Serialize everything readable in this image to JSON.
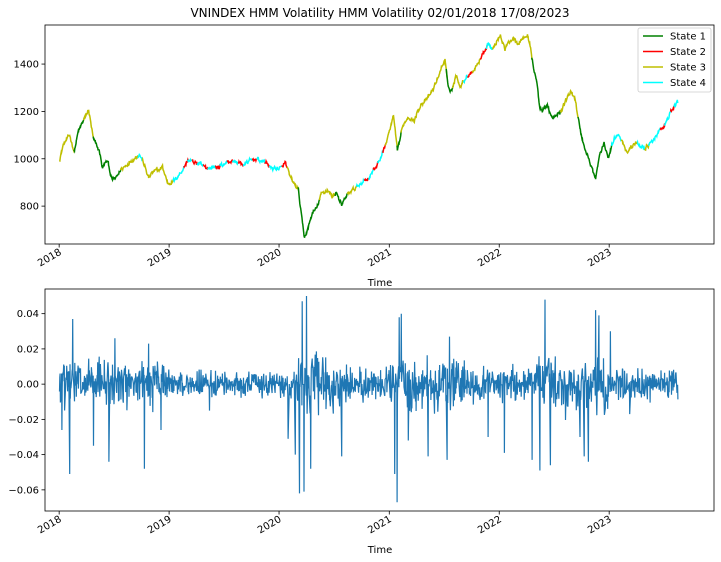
{
  "chart_data": [
    {
      "type": "line",
      "title": "VNINDEX HMM Volatility HMM Volatility 02/01/2018 17/08/2023",
      "xlabel": "Time",
      "ylabel": "",
      "x_ticks": [
        "2018",
        "2019",
        "2020",
        "2021",
        "2022",
        "2023"
      ],
      "y_ticks": [
        "800",
        "1000",
        "1200",
        "1400"
      ],
      "xlim": [
        "2017-11-15",
        "2023-12-15"
      ],
      "ylim": [
        640,
        1565
      ],
      "legend_position": "top-right",
      "legend": [
        "State 1",
        "State 2",
        "State 3",
        "State 4"
      ],
      "colors": {
        "State 1": "#008000",
        "State 2": "#ff0000",
        "State 3": "#bfbf00",
        "State 4": "#00ffff"
      },
      "anchors": [
        [
          "2018-01-02",
          995
        ],
        [
          "2018-01-15",
          1060
        ],
        [
          "2018-02-05",
          1100
        ],
        [
          "2018-02-20",
          1030
        ],
        [
          "2018-03-05",
          1110
        ],
        [
          "2018-03-20",
          1155
        ],
        [
          "2018-04-09",
          1205
        ],
        [
          "2018-04-25",
          1080
        ],
        [
          "2018-05-15",
          1030
        ],
        [
          "2018-05-25",
          960
        ],
        [
          "2018-06-10",
          995
        ],
        [
          "2018-06-25",
          910
        ],
        [
          "2018-07-10",
          920
        ],
        [
          "2018-07-25",
          955
        ],
        [
          "2018-08-10",
          970
        ],
        [
          "2018-08-25",
          990
        ],
        [
          "2018-09-15",
          1010
        ],
        [
          "2018-09-25",
          1020
        ],
        [
          "2018-10-10",
          975
        ],
        [
          "2018-10-25",
          920
        ],
        [
          "2018-11-10",
          945
        ],
        [
          "2018-11-25",
          950
        ],
        [
          "2018-12-10",
          965
        ],
        [
          "2018-12-28",
          895
        ],
        [
          "2019-01-20",
          910
        ],
        [
          "2019-02-10",
          945
        ],
        [
          "2019-03-05",
          995
        ],
        [
          "2019-03-25",
          985
        ],
        [
          "2019-04-15",
          975
        ],
        [
          "2019-05-05",
          960
        ],
        [
          "2019-05-25",
          965
        ],
        [
          "2019-06-15",
          965
        ],
        [
          "2019-07-05",
          980
        ],
        [
          "2019-07-25",
          990
        ],
        [
          "2019-08-15",
          985
        ],
        [
          "2019-09-05",
          975
        ],
        [
          "2019-09-25",
          990
        ],
        [
          "2019-10-15",
          1000
        ],
        [
          "2019-11-05",
          990
        ],
        [
          "2019-11-20",
          985
        ],
        [
          "2019-12-05",
          960
        ],
        [
          "2019-12-25",
          960
        ],
        [
          "2020-01-10",
          960
        ],
        [
          "2020-01-22",
          985
        ],
        [
          "2020-02-05",
          925
        ],
        [
          "2020-02-20",
          895
        ],
        [
          "2020-03-05",
          870
        ],
        [
          "2020-03-15",
          760
        ],
        [
          "2020-03-25",
          670
        ],
        [
          "2020-04-05",
          700
        ],
        [
          "2020-04-20",
          770
        ],
        [
          "2020-05-05",
          790
        ],
        [
          "2020-05-20",
          850
        ],
        [
          "2020-06-10",
          870
        ],
        [
          "2020-06-25",
          840
        ],
        [
          "2020-07-10",
          860
        ],
        [
          "2020-07-27",
          800
        ],
        [
          "2020-08-10",
          840
        ],
        [
          "2020-08-25",
          860
        ],
        [
          "2020-09-15",
          880
        ],
        [
          "2020-10-05",
          905
        ],
        [
          "2020-10-25",
          920
        ],
        [
          "2020-11-15",
          960
        ],
        [
          "2020-12-05",
          1010
        ],
        [
          "2020-12-25",
          1080
        ],
        [
          "2021-01-15",
          1180
        ],
        [
          "2021-01-28",
          1030
        ],
        [
          "2021-02-15",
          1140
        ],
        [
          "2021-03-05",
          1180
        ],
        [
          "2021-03-25",
          1160
        ],
        [
          "2021-04-15",
          1230
        ],
        [
          "2021-05-05",
          1250
        ],
        [
          "2021-05-25",
          1290
        ],
        [
          "2021-06-10",
          1340
        ],
        [
          "2021-06-25",
          1390
        ],
        [
          "2021-07-05",
          1420
        ],
        [
          "2021-07-15",
          1300
        ],
        [
          "2021-07-28",
          1290
        ],
        [
          "2021-08-10",
          1350
        ],
        [
          "2021-08-25",
          1310
        ],
        [
          "2021-09-10",
          1340
        ],
        [
          "2021-09-25",
          1360
        ],
        [
          "2021-10-10",
          1380
        ],
        [
          "2021-10-25",
          1410
        ],
        [
          "2021-11-10",
          1450
        ],
        [
          "2021-11-25",
          1490
        ],
        [
          "2021-12-10",
          1460
        ],
        [
          "2021-12-25",
          1500
        ],
        [
          "2022-01-05",
          1525
        ],
        [
          "2022-01-20",
          1460
        ],
        [
          "2022-02-05",
          1500
        ],
        [
          "2022-02-20",
          1510
        ],
        [
          "2022-03-05",
          1490
        ],
        [
          "2022-03-20",
          1510
        ],
        [
          "2022-04-05",
          1520
        ],
        [
          "2022-04-15",
          1470
        ],
        [
          "2022-04-25",
          1380
        ],
        [
          "2022-05-05",
          1330
        ],
        [
          "2022-05-15",
          1220
        ],
        [
          "2022-05-25",
          1200
        ],
        [
          "2022-06-10",
          1230
        ],
        [
          "2022-06-25",
          1170
        ],
        [
          "2022-07-10",
          1180
        ],
        [
          "2022-07-25",
          1200
        ],
        [
          "2022-08-10",
          1250
        ],
        [
          "2022-08-25",
          1280
        ],
        [
          "2022-09-10",
          1260
        ],
        [
          "2022-09-25",
          1130
        ],
        [
          "2022-10-10",
          1050
        ],
        [
          "2022-10-25",
          1000
        ],
        [
          "2022-11-10",
          940
        ],
        [
          "2022-11-17",
          915
        ],
        [
          "2022-12-01",
          1020
        ],
        [
          "2022-12-15",
          1060
        ],
        [
          "2022-12-30",
          1005
        ],
        [
          "2023-01-15",
          1080
        ],
        [
          "2023-01-30",
          1110
        ],
        [
          "2023-02-15",
          1070
        ],
        [
          "2023-03-01",
          1030
        ],
        [
          "2023-03-15",
          1050
        ],
        [
          "2023-03-30",
          1065
        ],
        [
          "2023-04-15",
          1055
        ],
        [
          "2023-04-30",
          1045
        ],
        [
          "2023-05-15",
          1060
        ],
        [
          "2023-05-30",
          1080
        ],
        [
          "2023-06-15",
          1120
        ],
        [
          "2023-06-30",
          1130
        ],
        [
          "2023-07-15",
          1170
        ],
        [
          "2023-07-30",
          1210
        ],
        [
          "2023-08-17",
          1240
        ]
      ],
      "state_segments": [
        [
          "2018-01-02",
          3
        ],
        [
          "2018-02-20",
          1
        ],
        [
          "2018-03-25",
          3
        ],
        [
          "2018-04-25",
          1
        ],
        [
          "2018-07-25",
          3
        ],
        [
          "2018-09-20",
          4
        ],
        [
          "2018-10-05",
          3
        ],
        [
          "2018-11-10",
          3
        ],
        [
          "2019-01-15",
          4
        ],
        [
          "2019-02-20",
          2
        ],
        [
          "2019-03-05",
          4
        ],
        [
          "2019-03-20",
          2
        ],
        [
          "2019-04-05",
          4
        ],
        [
          "2019-04-25",
          2
        ],
        [
          "2019-05-10",
          4
        ],
        [
          "2019-06-05",
          2
        ],
        [
          "2019-06-20",
          4
        ],
        [
          "2019-07-15",
          2
        ],
        [
          "2019-08-01",
          4
        ],
        [
          "2019-08-20",
          2
        ],
        [
          "2019-09-05",
          4
        ],
        [
          "2019-10-05",
          2
        ],
        [
          "2019-10-20",
          4
        ],
        [
          "2019-11-15",
          2
        ],
        [
          "2019-12-01",
          4
        ],
        [
          "2020-01-10",
          2
        ],
        [
          "2020-01-28",
          3
        ],
        [
          "2020-03-05",
          1
        ],
        [
          "2020-05-15",
          3
        ],
        [
          "2020-07-05",
          1
        ],
        [
          "2020-08-15",
          3
        ],
        [
          "2020-09-15",
          4
        ],
        [
          "2020-10-10",
          2
        ],
        [
          "2020-10-25",
          4
        ],
        [
          "2020-11-10",
          2
        ],
        [
          "2020-11-25",
          4
        ],
        [
          "2020-12-10",
          2
        ],
        [
          "2020-12-20",
          3
        ],
        [
          "2021-01-28",
          1
        ],
        [
          "2021-02-10",
          3
        ],
        [
          "2021-07-10",
          1
        ],
        [
          "2021-08-01",
          3
        ],
        [
          "2021-09-05",
          4
        ],
        [
          "2021-09-20",
          2
        ],
        [
          "2021-10-05",
          3
        ],
        [
          "2021-11-01",
          2
        ],
        [
          "2021-11-20",
          4
        ],
        [
          "2021-12-10",
          3
        ],
        [
          "2022-04-20",
          1
        ],
        [
          "2022-07-25",
          3
        ],
        [
          "2022-09-20",
          1
        ],
        [
          "2023-01-10",
          4
        ],
        [
          "2023-02-10",
          3
        ],
        [
          "2023-04-05",
          4
        ],
        [
          "2023-05-01",
          3
        ],
        [
          "2023-05-15",
          4
        ],
        [
          "2023-06-20",
          2
        ],
        [
          "2023-07-05",
          4
        ],
        [
          "2023-07-25",
          2
        ],
        [
          "2023-08-05",
          4
        ]
      ]
    },
    {
      "type": "line",
      "title": "",
      "xlabel": "Time",
      "ylabel": "",
      "x_ticks": [
        "2018",
        "2019",
        "2020",
        "2021",
        "2022",
        "2023"
      ],
      "y_ticks": [
        "0.04",
        "0.02",
        "0.00",
        "−0.02",
        "−0.04",
        "−0.06"
      ],
      "xlim": [
        "2017-11-15",
        "2023-12-15"
      ],
      "ylim": [
        -0.072,
        0.054
      ],
      "color": "#1f77b4",
      "series": [
        {
          "start": "2018-01-02",
          "end": "2023-08-17",
          "spikes": [
            [
              "2018-01-10",
              -0.026
            ],
            [
              "2018-02-05",
              -0.051
            ],
            [
              "2018-02-15",
              0.037
            ],
            [
              "2018-03-10",
              0.025
            ],
            [
              "2018-04-25",
              -0.035
            ],
            [
              "2018-05-20",
              0.028
            ],
            [
              "2018-06-15",
              -0.044
            ],
            [
              "2018-07-05",
              0.026
            ],
            [
              "2018-08-05",
              -0.021
            ],
            [
              "2018-10-11",
              -0.048
            ],
            [
              "2018-10-25",
              0.023
            ],
            [
              "2018-12-05",
              -0.026
            ],
            [
              "2019-05-15",
              -0.015
            ],
            [
              "2019-08-10",
              0.014
            ],
            [
              "2020-01-31",
              -0.031
            ],
            [
              "2020-02-24",
              -0.04
            ],
            [
              "2020-03-09",
              -0.062
            ],
            [
              "2020-03-18",
              0.047
            ],
            [
              "2020-03-24",
              -0.061
            ],
            [
              "2020-04-01",
              0.05
            ],
            [
              "2020-04-15",
              -0.048
            ],
            [
              "2020-05-10",
              0.027
            ],
            [
              "2020-07-27",
              -0.041
            ],
            [
              "2020-08-15",
              0.018
            ],
            [
              "2021-01-19",
              -0.051
            ],
            [
              "2021-01-27",
              -0.067
            ],
            [
              "2021-02-03",
              0.038
            ],
            [
              "2021-02-10",
              0.04
            ],
            [
              "2021-03-05",
              -0.032
            ],
            [
              "2021-05-10",
              -0.041
            ],
            [
              "2021-07-12",
              -0.043
            ],
            [
              "2021-07-20",
              0.027
            ],
            [
              "2021-11-25",
              -0.03
            ],
            [
              "2022-01-18",
              -0.039
            ],
            [
              "2022-04-20",
              -0.043
            ],
            [
              "2022-05-16",
              -0.049
            ],
            [
              "2022-06-02",
              0.048
            ],
            [
              "2022-06-20",
              -0.046
            ],
            [
              "2022-07-10",
              0.02
            ],
            [
              "2022-09-26",
              -0.03
            ],
            [
              "2022-10-10",
              -0.041
            ],
            [
              "2022-10-24",
              -0.044
            ],
            [
              "2022-11-17",
              0.042
            ],
            [
              "2022-11-28",
              0.039
            ],
            [
              "2022-12-10",
              -0.038
            ],
            [
              "2023-01-05",
              0.03
            ],
            [
              "2023-03-10",
              -0.017
            ],
            [
              "2023-05-20",
              0.014
            ]
          ]
        }
      ]
    }
  ]
}
